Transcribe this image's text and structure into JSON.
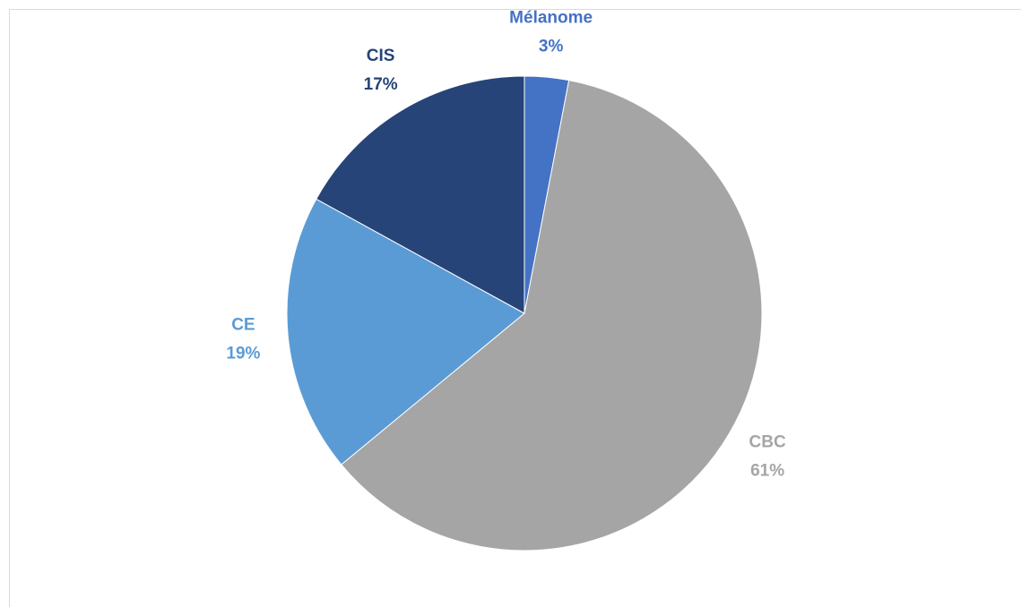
{
  "chart_data": {
    "type": "pie",
    "categories": [
      "Mélanome",
      "CBC",
      "CE",
      "CIS"
    ],
    "values": [
      3,
      61,
      19,
      17
    ],
    "value_labels": [
      "3%",
      "61%",
      "19%",
      "17%"
    ],
    "colors": [
      "#4472c4",
      "#a5a5a5",
      "#5b9bd5",
      "#264478"
    ]
  }
}
